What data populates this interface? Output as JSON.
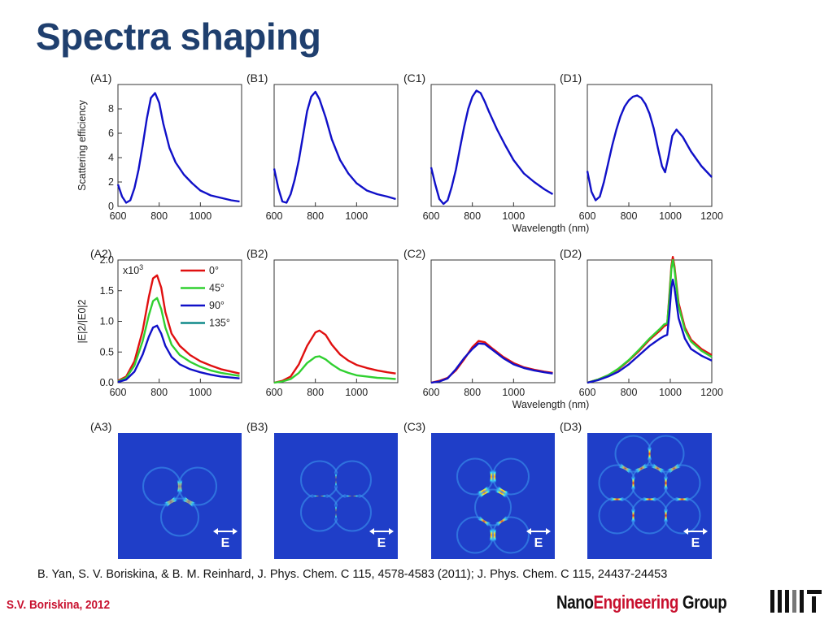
{
  "slide": {
    "title": "Spectra shaping",
    "citation": "B. Yan, S. V. Boriskina, & B. M. Reinhard, J. Phys. Chem. C 115, 4578-4583 (2011); J. Phys. Chem. C 115, 24437-24453",
    "author": "S.V. Boriskina, 2012",
    "brand": {
      "part1": "Nano",
      "part2": "Engineering",
      "part3": " Group"
    },
    "colors": {
      "title": "#1f3f6e",
      "accent": "#c8102e",
      "curve": "#1010c8",
      "map_bg": "#1f3ec8"
    }
  },
  "chart_data": [
    {
      "type": "line",
      "panel_label": "(A1)",
      "ylabel": "Scattering efficiency",
      "xlabel": "",
      "xlim": [
        600,
        1200
      ],
      "ylim": [
        0,
        10
      ],
      "xticks": [
        600,
        800,
        1000
      ],
      "yticks": [
        0,
        2,
        4,
        6,
        8
      ],
      "series": [
        {
          "color": "#1010c8",
          "x": [
            600,
            620,
            640,
            660,
            680,
            700,
            720,
            740,
            760,
            780,
            800,
            820,
            850,
            880,
            920,
            960,
            1000,
            1050,
            1100,
            1150,
            1190
          ],
          "y": [
            1.8,
            0.8,
            0.3,
            0.5,
            1.5,
            3.0,
            5.0,
            7.2,
            8.9,
            9.3,
            8.5,
            6.8,
            4.8,
            3.6,
            2.6,
            1.9,
            1.3,
            0.9,
            0.7,
            0.5,
            0.4
          ]
        }
      ]
    },
    {
      "type": "line",
      "panel_label": "(B1)",
      "ylabel": "",
      "xlabel": "",
      "xlim": [
        600,
        1200
      ],
      "ylim": [
        0,
        10
      ],
      "xticks": [
        600,
        800,
        1000
      ],
      "yticks": [],
      "series": [
        {
          "color": "#1010c8",
          "x": [
            600,
            620,
            640,
            660,
            680,
            700,
            720,
            740,
            760,
            780,
            800,
            820,
            850,
            880,
            920,
            960,
            1000,
            1050,
            1100,
            1150,
            1190
          ],
          "y": [
            3.1,
            1.5,
            0.4,
            0.3,
            1.0,
            2.2,
            3.8,
            5.8,
            7.8,
            9.0,
            9.4,
            8.8,
            7.3,
            5.5,
            3.8,
            2.7,
            1.9,
            1.3,
            1.0,
            0.8,
            0.6
          ]
        }
      ]
    },
    {
      "type": "line",
      "panel_label": "(C1)",
      "ylabel": "",
      "xlabel": "Wavelength (nm)",
      "xlim": [
        600,
        1200
      ],
      "ylim": [
        0,
        10
      ],
      "xticks": [
        600,
        800,
        1000
      ],
      "yticks": [],
      "series": [
        {
          "color": "#1010c8",
          "x": [
            600,
            620,
            640,
            660,
            680,
            700,
            720,
            740,
            760,
            780,
            800,
            820,
            840,
            860,
            880,
            920,
            960,
            1000,
            1050,
            1100,
            1150,
            1190
          ],
          "y": [
            3.2,
            1.8,
            0.6,
            0.2,
            0.5,
            1.6,
            3.0,
            4.8,
            6.5,
            8.0,
            9.0,
            9.5,
            9.3,
            8.6,
            7.8,
            6.3,
            5.0,
            3.8,
            2.7,
            2.0,
            1.4,
            1.0
          ]
        }
      ]
    },
    {
      "type": "line",
      "panel_label": "(D1)",
      "ylabel": "",
      "xlabel": "",
      "xlim": [
        600,
        1200
      ],
      "ylim": [
        0,
        10
      ],
      "xticks": [
        600,
        800,
        1000,
        1200
      ],
      "yticks": [],
      "series": [
        {
          "color": "#1010c8",
          "x": [
            600,
            620,
            640,
            660,
            680,
            700,
            720,
            740,
            760,
            780,
            800,
            820,
            840,
            860,
            880,
            900,
            920,
            940,
            960,
            975,
            990,
            1010,
            1030,
            1060,
            1100,
            1150,
            1200
          ],
          "y": [
            2.9,
            1.2,
            0.5,
            0.8,
            2.0,
            3.5,
            5.0,
            6.3,
            7.4,
            8.2,
            8.7,
            9.0,
            9.1,
            8.9,
            8.4,
            7.6,
            6.4,
            4.8,
            3.3,
            2.8,
            4.0,
            5.8,
            6.3,
            5.7,
            4.5,
            3.3,
            2.4
          ]
        }
      ]
    },
    {
      "type": "line",
      "panel_label": "(A2)",
      "ylabel": "|E|2/|E0|2",
      "xlabel": "",
      "multiplier_label": "x10",
      "multiplier_exp": "3",
      "xlim": [
        600,
        1200
      ],
      "ylim": [
        0,
        2.0
      ],
      "xticks": [
        600,
        800,
        1000
      ],
      "yticks": [
        0.0,
        0.5,
        1.0,
        1.5,
        2.0
      ],
      "legend": {
        "position": "top-right",
        "entries": [
          {
            "label": "0°",
            "color": "#e01010"
          },
          {
            "label": "45°",
            "color": "#30d030"
          },
          {
            "label": "90°",
            "color": "#1010c8"
          },
          {
            "label": "135°",
            "color": "#108a8a"
          }
        ]
      },
      "series": [
        {
          "name": "0°",
          "color": "#e01010",
          "x": [
            600,
            640,
            680,
            720,
            750,
            770,
            790,
            810,
            830,
            860,
            900,
            950,
            1000,
            1050,
            1100,
            1190
          ],
          "y": [
            0.03,
            0.1,
            0.35,
            0.85,
            1.4,
            1.7,
            1.75,
            1.55,
            1.15,
            0.8,
            0.6,
            0.45,
            0.35,
            0.28,
            0.22,
            0.15
          ]
        },
        {
          "name": "45°",
          "color": "#30d030",
          "x": [
            600,
            640,
            680,
            720,
            750,
            770,
            790,
            810,
            830,
            860,
            900,
            950,
            1000,
            1050,
            1100,
            1190
          ],
          "y": [
            0.02,
            0.08,
            0.28,
            0.68,
            1.1,
            1.33,
            1.38,
            1.2,
            0.9,
            0.62,
            0.45,
            0.34,
            0.26,
            0.2,
            0.16,
            0.11
          ]
        },
        {
          "name": "90°",
          "color": "#1010c8",
          "x": [
            600,
            640,
            680,
            720,
            750,
            770,
            790,
            810,
            830,
            860,
            900,
            950,
            1000,
            1050,
            1100,
            1190
          ],
          "y": [
            0.01,
            0.05,
            0.18,
            0.46,
            0.75,
            0.9,
            0.93,
            0.8,
            0.6,
            0.42,
            0.3,
            0.22,
            0.17,
            0.13,
            0.1,
            0.07
          ]
        }
      ]
    },
    {
      "type": "line",
      "panel_label": "(B2)",
      "ylabel": "",
      "xlabel": "",
      "xlim": [
        600,
        1200
      ],
      "ylim": [
        0,
        2.0
      ],
      "xticks": [
        600,
        800,
        1000
      ],
      "yticks": [],
      "series": [
        {
          "name": "0°",
          "color": "#e01010",
          "x": [
            600,
            640,
            680,
            720,
            760,
            800,
            820,
            850,
            880,
            920,
            960,
            1000,
            1050,
            1100,
            1150,
            1190
          ],
          "y": [
            0.0,
            0.03,
            0.1,
            0.3,
            0.6,
            0.82,
            0.85,
            0.78,
            0.62,
            0.46,
            0.36,
            0.29,
            0.24,
            0.2,
            0.17,
            0.15
          ]
        },
        {
          "name": "45°",
          "color": "#30d030",
          "x": [
            600,
            640,
            680,
            720,
            760,
            800,
            820,
            850,
            880,
            920,
            960,
            1000,
            1050,
            1100,
            1150,
            1190
          ],
          "y": [
            0.0,
            0.02,
            0.06,
            0.16,
            0.32,
            0.42,
            0.43,
            0.38,
            0.3,
            0.21,
            0.16,
            0.12,
            0.1,
            0.08,
            0.07,
            0.06
          ]
        }
      ]
    },
    {
      "type": "line",
      "panel_label": "(C2)",
      "ylabel": "",
      "xlabel": "Wavelength (nm)",
      "xlim": [
        600,
        1200
      ],
      "ylim": [
        0,
        2.0
      ],
      "xticks": [
        600,
        800,
        1000
      ],
      "yticks": [],
      "series": [
        {
          "name": "0°",
          "color": "#e01010",
          "x": [
            600,
            640,
            680,
            720,
            760,
            800,
            830,
            860,
            900,
            950,
            1000,
            1050,
            1100,
            1150,
            1190
          ],
          "y": [
            0.0,
            0.03,
            0.08,
            0.2,
            0.38,
            0.58,
            0.68,
            0.66,
            0.55,
            0.42,
            0.32,
            0.25,
            0.21,
            0.18,
            0.16
          ]
        },
        {
          "name": "90°",
          "color": "#1010c8",
          "x": [
            600,
            640,
            680,
            720,
            760,
            800,
            830,
            860,
            900,
            950,
            1000,
            1050,
            1100,
            1150,
            1190
          ],
          "y": [
            0.0,
            0.02,
            0.07,
            0.22,
            0.4,
            0.55,
            0.64,
            0.63,
            0.53,
            0.4,
            0.3,
            0.24,
            0.2,
            0.17,
            0.15
          ]
        }
      ]
    },
    {
      "type": "line",
      "panel_label": "(D2)",
      "ylabel": "",
      "xlabel": "",
      "xlim": [
        600,
        1200
      ],
      "ylim": [
        0,
        2.0
      ],
      "xticks": [
        600,
        800,
        1000,
        1200
      ],
      "yticks": [],
      "series": [
        {
          "name": "0°",
          "color": "#e01010",
          "x": [
            600,
            650,
            700,
            750,
            800,
            850,
            900,
            950,
            970,
            985,
            995,
            1005,
            1012,
            1020,
            1040,
            1070,
            1100,
            1150,
            1200
          ],
          "y": [
            0.0,
            0.05,
            0.12,
            0.22,
            0.36,
            0.52,
            0.7,
            0.85,
            0.92,
            0.95,
            1.4,
            1.9,
            2.05,
            1.9,
            1.3,
            0.9,
            0.7,
            0.55,
            0.45
          ]
        },
        {
          "name": "45°",
          "color": "#30d030",
          "x": [
            600,
            650,
            700,
            750,
            800,
            850,
            900,
            950,
            970,
            985,
            995,
            1005,
            1012,
            1020,
            1040,
            1070,
            1100,
            1150,
            1200
          ],
          "y": [
            0.0,
            0.05,
            0.12,
            0.23,
            0.37,
            0.54,
            0.72,
            0.88,
            0.95,
            0.97,
            1.35,
            1.85,
            2.0,
            1.85,
            1.25,
            0.86,
            0.67,
            0.52,
            0.42
          ]
        },
        {
          "name": "90°",
          "color": "#1010c8",
          "x": [
            600,
            650,
            700,
            750,
            800,
            850,
            900,
            950,
            970,
            985,
            995,
            1005,
            1012,
            1020,
            1040,
            1070,
            1100,
            1150,
            1200
          ],
          "y": [
            0.0,
            0.04,
            0.1,
            0.18,
            0.3,
            0.45,
            0.6,
            0.72,
            0.76,
            0.78,
            1.1,
            1.55,
            1.68,
            1.55,
            1.05,
            0.72,
            0.55,
            0.44,
            0.36
          ]
        }
      ]
    }
  ],
  "field_maps": [
    {
      "panel_label": "(A3)",
      "e_label": "E"
    },
    {
      "panel_label": "(B3)",
      "e_label": "E"
    },
    {
      "panel_label": "(C3)",
      "e_label": "E"
    },
    {
      "panel_label": "(D3)",
      "e_label": "E"
    }
  ]
}
